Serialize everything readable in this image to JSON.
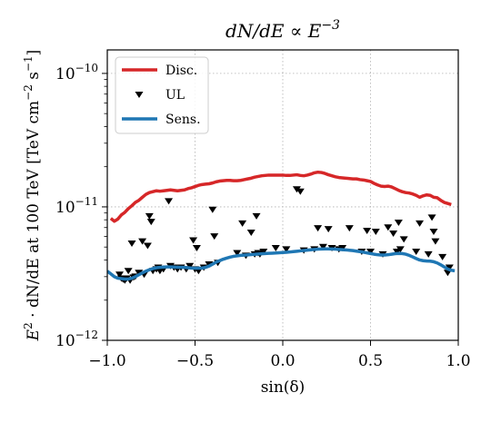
{
  "chart_data": {
    "type": "line",
    "title": "dN/dE ∝ E^−3",
    "title_main": "dN/dE ∝ E",
    "title_exp": "−3",
    "xlabel": "sin(δ)",
    "ylabel": "E²·dN/dE at 100 TeV  [TeV cm⁻² s⁻¹]",
    "ylabel_main": "E",
    "ylabel_sup1": "2",
    "ylabel_mid": " · dN/dE at 100 TeV  [TeV cm",
    "ylabel_sup2": "−2",
    "ylabel_mid2": " s",
    "ylabel_sup3": "−1",
    "ylabel_end": "]",
    "xlim": [
      -1.0,
      1.0
    ],
    "ylim": [
      1e-12,
      1.5e-10
    ],
    "yscale": "log",
    "grid": true,
    "legend_position": "top-left",
    "xticks": [
      -1.0,
      -0.5,
      0.0,
      0.5,
      1.0
    ],
    "xtick_labels": [
      "−1.0",
      "−0.5",
      "0.0",
      "0.5",
      "1.0"
    ],
    "yticks": [
      {
        "value": 1e-12,
        "base": "10",
        "exp": "−12"
      },
      {
        "value": 1e-11,
        "base": "10",
        "exp": "−11"
      },
      {
        "value": 1e-10,
        "base": "10",
        "exp": "−10"
      }
    ],
    "series": [
      {
        "name": "Disc.",
        "kind": "line",
        "color": "#d62728",
        "x": [
          -0.98,
          -0.96,
          -0.94,
          -0.92,
          -0.9,
          -0.88,
          -0.86,
          -0.84,
          -0.82,
          -0.8,
          -0.78,
          -0.76,
          -0.74,
          -0.72,
          -0.7,
          -0.68,
          -0.66,
          -0.64,
          -0.62,
          -0.6,
          -0.58,
          -0.56,
          -0.54,
          -0.52,
          -0.5,
          -0.48,
          -0.46,
          -0.44,
          -0.42,
          -0.4,
          -0.38,
          -0.36,
          -0.34,
          -0.32,
          -0.3,
          -0.28,
          -0.26,
          -0.24,
          -0.22,
          -0.2,
          -0.18,
          -0.16,
          -0.14,
          -0.12,
          -0.1,
          -0.08,
          -0.06,
          -0.04,
          -0.02,
          0.0,
          0.02,
          0.04,
          0.06,
          0.08,
          0.1,
          0.12,
          0.14,
          0.16,
          0.18,
          0.2,
          0.22,
          0.24,
          0.26,
          0.28,
          0.3,
          0.32,
          0.34,
          0.36,
          0.38,
          0.4,
          0.42,
          0.44,
          0.46,
          0.48,
          0.5,
          0.52,
          0.54,
          0.56,
          0.58,
          0.6,
          0.62,
          0.64,
          0.66,
          0.68,
          0.7,
          0.72,
          0.74,
          0.76,
          0.78,
          0.8,
          0.82,
          0.84,
          0.86,
          0.88,
          0.9,
          0.92,
          0.94,
          0.96
        ],
        "y": [
          8.2e-12,
          7.8e-12,
          8.1e-12,
          8.7e-12,
          9.1e-12,
          9.7e-12,
          1.02e-11,
          1.08e-11,
          1.12e-11,
          1.18e-11,
          1.24e-11,
          1.28e-11,
          1.3e-11,
          1.32e-11,
          1.31e-11,
          1.32e-11,
          1.33e-11,
          1.34e-11,
          1.33e-11,
          1.32e-11,
          1.33e-11,
          1.34e-11,
          1.37e-11,
          1.39e-11,
          1.42e-11,
          1.45e-11,
          1.47e-11,
          1.48e-11,
          1.49e-11,
          1.51e-11,
          1.54e-11,
          1.56e-11,
          1.57e-11,
          1.58e-11,
          1.58e-11,
          1.57e-11,
          1.57e-11,
          1.58e-11,
          1.6e-11,
          1.62e-11,
          1.64e-11,
          1.67e-11,
          1.69e-11,
          1.71e-11,
          1.72e-11,
          1.73e-11,
          1.73e-11,
          1.73e-11,
          1.73e-11,
          1.73e-11,
          1.72e-11,
          1.72e-11,
          1.73e-11,
          1.74e-11,
          1.72e-11,
          1.71e-11,
          1.73e-11,
          1.76e-11,
          1.8e-11,
          1.82e-11,
          1.81e-11,
          1.78e-11,
          1.74e-11,
          1.71e-11,
          1.68e-11,
          1.66e-11,
          1.65e-11,
          1.64e-11,
          1.63e-11,
          1.62e-11,
          1.62e-11,
          1.6e-11,
          1.59e-11,
          1.57e-11,
          1.55e-11,
          1.5e-11,
          1.46e-11,
          1.43e-11,
          1.42e-11,
          1.43e-11,
          1.41e-11,
          1.37e-11,
          1.33e-11,
          1.3e-11,
          1.28e-11,
          1.27e-11,
          1.25e-11,
          1.22e-11,
          1.18e-11,
          1.21e-11,
          1.23e-11,
          1.22e-11,
          1.18e-11,
          1.17e-11,
          1.12e-11,
          1.08e-11,
          1.06e-11,
          1.04e-11
        ]
      },
      {
        "name": "UL",
        "kind": "scatter",
        "marker": "triangle-down",
        "color": "#000000",
        "x": [
          -0.93,
          -0.92,
          -0.91,
          -0.9,
          -0.89,
          -0.88,
          -0.87,
          -0.86,
          -0.85,
          -0.84,
          -0.82,
          -0.8,
          -0.79,
          -0.77,
          -0.76,
          -0.75,
          -0.74,
          -0.72,
          -0.71,
          -0.7,
          -0.68,
          -0.65,
          -0.64,
          -0.62,
          -0.6,
          -0.58,
          -0.55,
          -0.53,
          -0.51,
          -0.5,
          -0.49,
          -0.48,
          -0.45,
          -0.42,
          -0.4,
          -0.39,
          -0.37,
          -0.26,
          -0.23,
          -0.21,
          -0.18,
          -0.16,
          -0.15,
          -0.14,
          -0.13,
          -0.11,
          -0.04,
          0.02,
          0.08,
          0.1,
          0.12,
          0.18,
          0.2,
          0.23,
          0.26,
          0.28,
          0.32,
          0.34,
          0.38,
          0.45,
          0.48,
          0.5,
          0.53,
          0.57,
          0.6,
          0.63,
          0.65,
          0.66,
          0.67,
          0.69,
          0.76,
          0.78,
          0.83,
          0.85,
          0.86,
          0.87,
          0.91,
          0.94,
          0.95
        ],
        "y": [
          3.1e-12,
          2.9e-12,
          2.85e-12,
          2.8e-12,
          2.9e-12,
          3.3e-12,
          2.8e-12,
          5.3e-12,
          2.95e-12,
          3e-12,
          3.2e-12,
          5.5e-12,
          3.1e-12,
          5.1e-12,
          8.5e-12,
          7.7e-12,
          3.3e-12,
          3.4e-12,
          3.5e-12,
          3.3e-12,
          3.4e-12,
          1.1e-11,
          3.6e-12,
          3.5e-12,
          3.4e-12,
          3.5e-12,
          3.4e-12,
          3.6e-12,
          5.6e-12,
          3.4e-12,
          4.9e-12,
          3.3e-12,
          3.5e-12,
          3.7e-12,
          9.5e-12,
          6e-12,
          3.8e-12,
          4.5e-12,
          7.5e-12,
          4.3e-12,
          6.4e-12,
          4.4e-12,
          8.5e-12,
          4.5e-12,
          4.4e-12,
          4.6e-12,
          4.9e-12,
          4.8e-12,
          1.35e-11,
          1.3e-11,
          4.7e-12,
          4.8e-12,
          6.9e-12,
          5e-12,
          6.8e-12,
          4.9e-12,
          4.8e-12,
          4.9e-12,
          6.9e-12,
          4.6e-12,
          6.6e-12,
          4.6e-12,
          6.5e-12,
          4.4e-12,
          7e-12,
          6.3e-12,
          4.6e-12,
          7.6e-12,
          4.8e-12,
          5.7e-12,
          4.6e-12,
          7.5e-12,
          4.4e-12,
          8.3e-12,
          6.5e-12,
          5.5e-12,
          4.2e-12,
          3.2e-12,
          3.5e-12
        ]
      },
      {
        "name": "Sens.",
        "kind": "line",
        "color": "#1f77b4",
        "x": [
          -1.0,
          -0.98,
          -0.96,
          -0.94,
          -0.92,
          -0.9,
          -0.88,
          -0.86,
          -0.84,
          -0.82,
          -0.8,
          -0.78,
          -0.76,
          -0.74,
          -0.72,
          -0.7,
          -0.68,
          -0.66,
          -0.64,
          -0.62,
          -0.6,
          -0.58,
          -0.56,
          -0.54,
          -0.52,
          -0.5,
          -0.48,
          -0.46,
          -0.44,
          -0.42,
          -0.4,
          -0.38,
          -0.36,
          -0.34,
          -0.32,
          -0.3,
          -0.28,
          -0.26,
          -0.24,
          -0.22,
          -0.2,
          -0.18,
          -0.16,
          -0.14,
          -0.12,
          -0.1,
          -0.08,
          -0.06,
          -0.04,
          -0.02,
          0.0,
          0.02,
          0.04,
          0.06,
          0.08,
          0.1,
          0.12,
          0.14,
          0.16,
          0.18,
          0.2,
          0.22,
          0.24,
          0.26,
          0.28,
          0.3,
          0.32,
          0.34,
          0.36,
          0.38,
          0.4,
          0.42,
          0.44,
          0.46,
          0.48,
          0.5,
          0.52,
          0.54,
          0.56,
          0.58,
          0.6,
          0.62,
          0.64,
          0.66,
          0.68,
          0.7,
          0.72,
          0.74,
          0.76,
          0.78,
          0.8,
          0.82,
          0.84,
          0.86,
          0.88,
          0.9,
          0.92,
          0.94,
          0.96,
          0.98
        ],
        "y": [
          3.3e-12,
          3.15e-12,
          3e-12,
          2.92e-12,
          2.9e-12,
          2.88e-12,
          2.88e-12,
          2.92e-12,
          3e-12,
          3.1e-12,
          3.2e-12,
          3.3e-12,
          3.38e-12,
          3.45e-12,
          3.5e-12,
          3.52e-12,
          3.54e-12,
          3.55e-12,
          3.55e-12,
          3.54e-12,
          3.53e-12,
          3.53e-12,
          3.52e-12,
          3.5e-12,
          3.48e-12,
          3.47e-12,
          3.47e-12,
          3.48e-12,
          3.52e-12,
          3.6e-12,
          3.72e-12,
          3.85e-12,
          3.95e-12,
          4.05e-12,
          4.13e-12,
          4.2e-12,
          4.26e-12,
          4.3e-12,
          4.33e-12,
          4.35e-12,
          4.37e-12,
          4.39e-12,
          4.41e-12,
          4.43e-12,
          4.45e-12,
          4.47e-12,
          4.49e-12,
          4.5e-12,
          4.51e-12,
          4.53e-12,
          4.55e-12,
          4.57e-12,
          4.59e-12,
          4.62e-12,
          4.65e-12,
          4.68e-12,
          4.71e-12,
          4.74e-12,
          4.77e-12,
          4.8e-12,
          4.82e-12,
          4.83e-12,
          4.84e-12,
          4.84e-12,
          4.83e-12,
          4.82e-12,
          4.8e-12,
          4.78e-12,
          4.76e-12,
          4.73e-12,
          4.7e-12,
          4.66e-12,
          4.62e-12,
          4.57e-12,
          4.52e-12,
          4.47e-12,
          4.42e-12,
          4.38e-12,
          4.36e-12,
          4.36e-12,
          4.38e-12,
          4.42e-12,
          4.46e-12,
          4.48e-12,
          4.47e-12,
          4.42e-12,
          4.33e-12,
          4.22e-12,
          4.1e-12,
          4e-12,
          3.95e-12,
          3.93e-12,
          3.92e-12,
          3.88e-12,
          3.8e-12,
          3.68e-12,
          3.55e-12,
          3.42e-12,
          3.35e-12,
          3.32e-12
        ]
      }
    ]
  }
}
